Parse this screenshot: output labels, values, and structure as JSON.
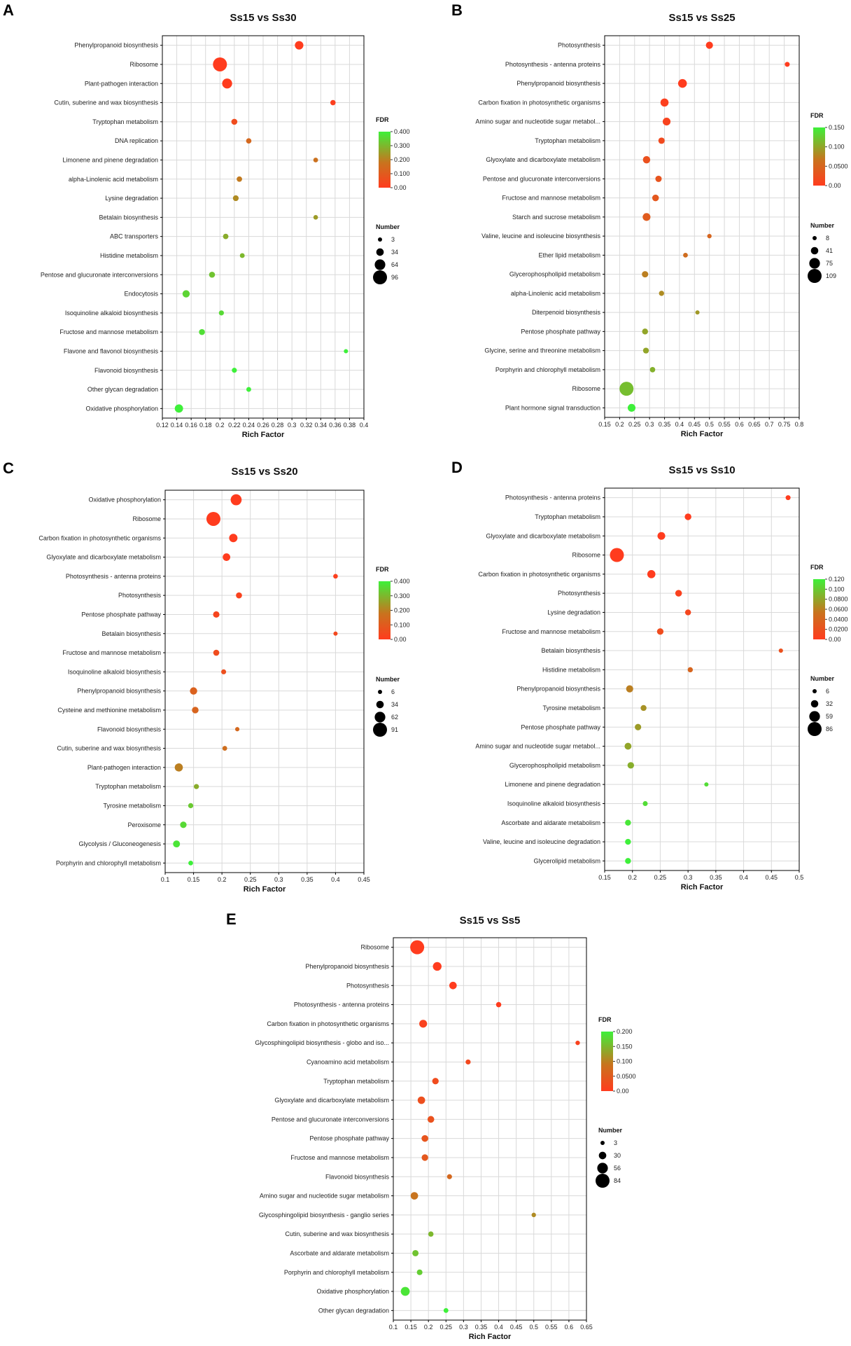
{
  "chart_data": [
    {
      "type": "scatter",
      "panel": "A",
      "title": "Ss15 vs Ss30",
      "xlabel": "Rich Factor",
      "xlim": [
        0.12,
        0.4
      ],
      "xticks": [
        0.12,
        0.14,
        0.16,
        0.18,
        0.2,
        0.22,
        0.24,
        0.26,
        0.28,
        0.3,
        0.32,
        0.34,
        0.36,
        0.38,
        0.4
      ],
      "xtick_labels": [
        "0.12",
        "0.14",
        "0.16",
        "0.18",
        "0.2",
        "0.22",
        "0.24",
        "0.26",
        "0.28",
        "0.3",
        "0.32",
        "0.34",
        "0.36",
        "0.38",
        "0.4"
      ],
      "fdr_legend": {
        "title": "FDR",
        "labels": [
          "0.400",
          "0.300",
          "0.200",
          "0.100",
          "0.00"
        ],
        "max": 0.4
      },
      "number_legend": {
        "title": "Number",
        "values": [
          3,
          34,
          64,
          96
        ]
      },
      "points": [
        {
          "label": "Phenylpropanoid biosynthesis",
          "rich_factor": 0.31,
          "number": 44,
          "fdr": 0.0
        },
        {
          "label": "Ribosome",
          "rich_factor": 0.2,
          "number": 96,
          "fdr": 0.0
        },
        {
          "label": "Plant-pathogen interaction",
          "rich_factor": 0.21,
          "number": 58,
          "fdr": 0.0
        },
        {
          "label": "Cutin, suberine and wax biosynthesis",
          "rich_factor": 0.357,
          "number": 14,
          "fdr": 0.01
        },
        {
          "label": "Tryptophan metabolism",
          "rich_factor": 0.22,
          "number": 20,
          "fdr": 0.05
        },
        {
          "label": "DNA replication",
          "rich_factor": 0.24,
          "number": 14,
          "fdr": 0.14
        },
        {
          "label": "Limonene and pinene degradation",
          "rich_factor": 0.333,
          "number": 8,
          "fdr": 0.17
        },
        {
          "label": "alpha-Linolenic acid metabolism",
          "rich_factor": 0.227,
          "number": 15,
          "fdr": 0.19
        },
        {
          "label": "Lysine degradation",
          "rich_factor": 0.222,
          "number": 18,
          "fdr": 0.22
        },
        {
          "label": "Betalain biosynthesis",
          "rich_factor": 0.333,
          "number": 7,
          "fdr": 0.25
        },
        {
          "label": "ABC transporters",
          "rich_factor": 0.208,
          "number": 15,
          "fdr": 0.28
        },
        {
          "label": "Histidine metabolism",
          "rich_factor": 0.231,
          "number": 9,
          "fdr": 0.3
        },
        {
          "label": "Pentose and glucuronate interconversions",
          "rich_factor": 0.189,
          "number": 20,
          "fdr": 0.32
        },
        {
          "label": "Endocytosis",
          "rich_factor": 0.153,
          "number": 32,
          "fdr": 0.35
        },
        {
          "label": "Isoquinoline alkaloid biosynthesis",
          "rich_factor": 0.202,
          "number": 11,
          "fdr": 0.36
        },
        {
          "label": "Fructose and mannose metabolism",
          "rich_factor": 0.175,
          "number": 20,
          "fdr": 0.37
        },
        {
          "label": "Flavone and flavonol biosynthesis",
          "rich_factor": 0.375,
          "number": 3,
          "fdr": 0.4
        },
        {
          "label": "Flavonoid biosynthesis",
          "rich_factor": 0.22,
          "number": 11,
          "fdr": 0.4
        },
        {
          "label": "Other glycan degradation",
          "rich_factor": 0.24,
          "number": 9,
          "fdr": 0.4
        },
        {
          "label": "Oxidative phosphorylation",
          "rich_factor": 0.143,
          "number": 42,
          "fdr": 0.4
        }
      ]
    },
    {
      "type": "scatter",
      "panel": "B",
      "title": "Ss15 vs Ss25",
      "xlabel": "Rich Factor",
      "xlim": [
        0.15,
        0.8
      ],
      "xticks": [
        0.15,
        0.2,
        0.25,
        0.3,
        0.35,
        0.4,
        0.45,
        0.5,
        0.55,
        0.6,
        0.65,
        0.7,
        0.75,
        0.8
      ],
      "xtick_labels": [
        "0.15",
        "0.2",
        "0.25",
        "0.3",
        "0.35",
        "0.4",
        "0.45",
        "0.5",
        "0.55",
        "0.6",
        "0.65",
        "0.7",
        "0.75",
        "0.8"
      ],
      "fdr_legend": {
        "title": "FDR",
        "labels": [
          "0.150",
          "0.100",
          "0.0500",
          "0.00"
        ],
        "max": 0.18
      },
      "number_legend": {
        "title": "Number",
        "values": [
          8,
          41,
          75,
          109
        ]
      },
      "points": [
        {
          "label": "Photosynthesis",
          "rich_factor": 0.5,
          "number": 38,
          "fdr": 0.0
        },
        {
          "label": "Photosynthesis - antenna proteins",
          "rich_factor": 0.76,
          "number": 16,
          "fdr": 0.0
        },
        {
          "label": "Phenylpropanoid biosynthesis",
          "rich_factor": 0.41,
          "number": 55,
          "fdr": 0.0
        },
        {
          "label": "Carbon fixation in photosynthetic organisms",
          "rich_factor": 0.35,
          "number": 48,
          "fdr": 0.005
        },
        {
          "label": "Amino sugar and nucleotide sugar metabol...",
          "rich_factor": 0.357,
          "number": 45,
          "fdr": 0.01
        },
        {
          "label": "Tryptophan metabolism",
          "rich_factor": 0.34,
          "number": 30,
          "fdr": 0.02
        },
        {
          "label": "Glyoxylate and dicarboxylate metabolism",
          "rich_factor": 0.29,
          "number": 40,
          "fdr": 0.03
        },
        {
          "label": "Pentose and glucuronate interconversions",
          "rich_factor": 0.33,
          "number": 30,
          "fdr": 0.035
        },
        {
          "label": "Fructose and mannose metabolism",
          "rich_factor": 0.32,
          "number": 33,
          "fdr": 0.04
        },
        {
          "label": "Starch and sucrose metabolism",
          "rich_factor": 0.29,
          "number": 45,
          "fdr": 0.045
        },
        {
          "label": "Valine, leucine and isoleucine biosynthesis",
          "rich_factor": 0.5,
          "number": 10,
          "fdr": 0.06
        },
        {
          "label": "Ether lipid metabolism",
          "rich_factor": 0.42,
          "number": 14,
          "fdr": 0.07
        },
        {
          "label": "Glycerophospholipid metabolism",
          "rich_factor": 0.285,
          "number": 30,
          "fdr": 0.09
        },
        {
          "label": "alpha-Linolenic acid metabolism",
          "rich_factor": 0.34,
          "number": 18,
          "fdr": 0.1
        },
        {
          "label": "Diterpenoid biosynthesis",
          "rich_factor": 0.46,
          "number": 8,
          "fdr": 0.11
        },
        {
          "label": "Pentose phosphate pathway",
          "rich_factor": 0.285,
          "number": 26,
          "fdr": 0.12
        },
        {
          "label": "Glycine, serine and threonine metabolism",
          "rich_factor": 0.288,
          "number": 25,
          "fdr": 0.12
        },
        {
          "label": "Porphyrin and chlorophyll metabolism",
          "rich_factor": 0.31,
          "number": 20,
          "fdr": 0.13
        },
        {
          "label": "Ribosome",
          "rich_factor": 0.223,
          "number": 109,
          "fdr": 0.14
        },
        {
          "label": "Plant hormone signal transduction",
          "rich_factor": 0.24,
          "number": 45,
          "fdr": 0.18
        }
      ]
    },
    {
      "type": "scatter",
      "panel": "C",
      "title": "Ss15 vs Ss20",
      "xlabel": "Rich Factor",
      "xlim": [
        0.1,
        0.45
      ],
      "xticks": [
        0.1,
        0.15,
        0.2,
        0.25,
        0.3,
        0.35,
        0.4,
        0.45
      ],
      "xtick_labels": [
        "0.1",
        "0.15",
        "0.2",
        "0.25",
        "0.3",
        "0.35",
        "0.4",
        "0.45"
      ],
      "fdr_legend": {
        "title": "FDR",
        "labels": [
          "0.400",
          "0.300",
          "0.200",
          "0.100",
          "0.00"
        ],
        "max": 0.4
      },
      "number_legend": {
        "title": "Number",
        "values": [
          6,
          34,
          62,
          91
        ]
      },
      "points": [
        {
          "label": "Oxidative phosphorylation",
          "rich_factor": 0.225,
          "number": 65,
          "fdr": 0.0
        },
        {
          "label": "Ribosome",
          "rich_factor": 0.185,
          "number": 91,
          "fdr": 0.0
        },
        {
          "label": "Carbon fixation in photosynthetic organisms",
          "rich_factor": 0.22,
          "number": 42,
          "fdr": 0.0
        },
        {
          "label": "Glyoxylate and dicarboxylate metabolism",
          "rich_factor": 0.208,
          "number": 35,
          "fdr": 0.0
        },
        {
          "label": "Photosynthesis - antenna proteins",
          "rich_factor": 0.4,
          "number": 10,
          "fdr": 0.01
        },
        {
          "label": "Photosynthesis",
          "rich_factor": 0.23,
          "number": 22,
          "fdr": 0.02
        },
        {
          "label": "Pentose phosphate pathway",
          "rich_factor": 0.19,
          "number": 25,
          "fdr": 0.03
        },
        {
          "label": "Betalain biosynthesis",
          "rich_factor": 0.4,
          "number": 6,
          "fdr": 0.04
        },
        {
          "label": "Fructose and mannose metabolism",
          "rich_factor": 0.19,
          "number": 22,
          "fdr": 0.05
        },
        {
          "label": "Isoquinoline alkaloid biosynthesis",
          "rich_factor": 0.203,
          "number": 13,
          "fdr": 0.06
        },
        {
          "label": "Phenylpropanoid biosynthesis",
          "rich_factor": 0.15,
          "number": 33,
          "fdr": 0.12
        },
        {
          "label": "Cysteine and methionine metabolism",
          "rich_factor": 0.153,
          "number": 27,
          "fdr": 0.13
        },
        {
          "label": "Flavonoid biosynthesis",
          "rich_factor": 0.227,
          "number": 7,
          "fdr": 0.14
        },
        {
          "label": "Cutin, suberine and wax biosynthesis",
          "rich_factor": 0.205,
          "number": 11,
          "fdr": 0.16
        },
        {
          "label": "Plant-pathogen interaction",
          "rich_factor": 0.124,
          "number": 40,
          "fdr": 0.2
        },
        {
          "label": "Tryptophan metabolism",
          "rich_factor": 0.155,
          "number": 14,
          "fdr": 0.28
        },
        {
          "label": "Tyrosine metabolism",
          "rich_factor": 0.145,
          "number": 14,
          "fdr": 0.33
        },
        {
          "label": "Peroxisome",
          "rich_factor": 0.132,
          "number": 26,
          "fdr": 0.36
        },
        {
          "label": "Glycolysis / Gluconeogenesis",
          "rich_factor": 0.12,
          "number": 30,
          "fdr": 0.38
        },
        {
          "label": "Porphyrin and chlorophyll metabolism",
          "rich_factor": 0.145,
          "number": 11,
          "fdr": 0.4
        }
      ]
    },
    {
      "type": "scatter",
      "panel": "D",
      "title": "Ss15 vs Ss10",
      "xlabel": "Rich Factor",
      "xlim": [
        0.15,
        0.5
      ],
      "xticks": [
        0.15,
        0.2,
        0.25,
        0.3,
        0.35,
        0.4,
        0.45,
        0.5
      ],
      "xtick_labels": [
        "0.15",
        "0.2",
        "0.25",
        "0.3",
        "0.35",
        "0.4",
        "0.45",
        "0.5"
      ],
      "fdr_legend": {
        "title": "FDR",
        "labels": [
          "0.120",
          "0.100",
          "0.0800",
          "0.0600",
          "0.0400",
          "0.0200",
          "0.00"
        ],
        "max": 0.12
      },
      "number_legend": {
        "title": "Number",
        "values": [
          6,
          32,
          59,
          86
        ]
      },
      "points": [
        {
          "label": "Photosynthesis - antenna proteins",
          "rich_factor": 0.48,
          "number": 12,
          "fdr": 0.0
        },
        {
          "label": "Tryptophan metabolism",
          "rich_factor": 0.3,
          "number": 26,
          "fdr": 0.0
        },
        {
          "label": "Glyoxylate and dicarboxylate metabolism",
          "rich_factor": 0.252,
          "number": 35,
          "fdr": 0.0
        },
        {
          "label": "Ribosome",
          "rich_factor": 0.172,
          "number": 86,
          "fdr": 0.0
        },
        {
          "label": "Carbon fixation in photosynthetic organisms",
          "rich_factor": 0.234,
          "number": 38,
          "fdr": 0.0
        },
        {
          "label": "Photosynthesis",
          "rich_factor": 0.283,
          "number": 26,
          "fdr": 0.005
        },
        {
          "label": "Lysine degradation",
          "rich_factor": 0.3,
          "number": 20,
          "fdr": 0.01
        },
        {
          "label": "Fructose and mannose metabolism",
          "rich_factor": 0.25,
          "number": 25,
          "fdr": 0.015
        },
        {
          "label": "Betalain biosynthesis",
          "rich_factor": 0.467,
          "number": 7,
          "fdr": 0.02
        },
        {
          "label": "Histidine metabolism",
          "rich_factor": 0.304,
          "number": 14,
          "fdr": 0.04
        },
        {
          "label": "Phenylpropanoid biosynthesis",
          "rich_factor": 0.195,
          "number": 30,
          "fdr": 0.06
        },
        {
          "label": "Tyrosine metabolism",
          "rich_factor": 0.22,
          "number": 20,
          "fdr": 0.07
        },
        {
          "label": "Pentose phosphate pathway",
          "rich_factor": 0.21,
          "number": 24,
          "fdr": 0.075
        },
        {
          "label": "Amino sugar and nucleotide sugar metabol...",
          "rich_factor": 0.192,
          "number": 28,
          "fdr": 0.08
        },
        {
          "label": "Glycerophospholipid metabolism",
          "rich_factor": 0.197,
          "number": 25,
          "fdr": 0.085
        },
        {
          "label": "Limonene and pinene degradation",
          "rich_factor": 0.333,
          "number": 6,
          "fdr": 0.11
        },
        {
          "label": "Isoquinoline alkaloid biosynthesis",
          "rich_factor": 0.223,
          "number": 12,
          "fdr": 0.11
        },
        {
          "label": "Ascorbate and aldarate metabolism",
          "rich_factor": 0.192,
          "number": 20,
          "fdr": 0.115
        },
        {
          "label": "Valine, leucine and isoleucine degradation",
          "rich_factor": 0.192,
          "number": 20,
          "fdr": 0.12
        },
        {
          "label": "Glycerolipid metabolism",
          "rich_factor": 0.192,
          "number": 20,
          "fdr": 0.12
        }
      ]
    },
    {
      "type": "scatter",
      "panel": "E",
      "title": "Ss15 vs Ss5",
      "xlabel": "Rich Factor",
      "xlim": [
        0.1,
        0.65
      ],
      "xticks": [
        0.1,
        0.15,
        0.2,
        0.25,
        0.3,
        0.35,
        0.4,
        0.45,
        0.5,
        0.55,
        0.6,
        0.65
      ],
      "xtick_labels": [
        "0.1",
        "0.15",
        "0.2",
        "0.25",
        "0.3",
        "0.35",
        "0.4",
        "0.45",
        "0.5",
        "0.55",
        "0.6",
        "0.65"
      ],
      "fdr_legend": {
        "title": "FDR",
        "labels": [
          "0.200",
          "0.150",
          "0.100",
          "0.0500",
          "0.00"
        ],
        "max": 0.2
      },
      "number_legend": {
        "title": "Number",
        "values": [
          3,
          30,
          56,
          84
        ]
      },
      "points": [
        {
          "label": "Ribosome",
          "rich_factor": 0.168,
          "number": 84,
          "fdr": 0.0
        },
        {
          "label": "Phenylpropanoid biosynthesis",
          "rich_factor": 0.225,
          "number": 40,
          "fdr": 0.0
        },
        {
          "label": "Photosynthesis",
          "rich_factor": 0.27,
          "number": 30,
          "fdr": 0.0
        },
        {
          "label": "Photosynthesis - antenna proteins",
          "rich_factor": 0.4,
          "number": 12,
          "fdr": 0.0
        },
        {
          "label": "Carbon fixation in photosynthetic organisms",
          "rich_factor": 0.185,
          "number": 33,
          "fdr": 0.01
        },
        {
          "label": "Glycosphingolipid biosynthesis - globo and iso...",
          "rich_factor": 0.625,
          "number": 5,
          "fdr": 0.01
        },
        {
          "label": "Cyanoamino acid metabolism",
          "rich_factor": 0.313,
          "number": 10,
          "fdr": 0.02
        },
        {
          "label": "Tryptophan metabolism",
          "rich_factor": 0.22,
          "number": 22,
          "fdr": 0.025
        },
        {
          "label": "Glyoxylate and dicarboxylate metabolism",
          "rich_factor": 0.18,
          "number": 30,
          "fdr": 0.03
        },
        {
          "label": "Pentose and glucuronate interconversions",
          "rich_factor": 0.207,
          "number": 24,
          "fdr": 0.035
        },
        {
          "label": "Pentose phosphate pathway",
          "rich_factor": 0.19,
          "number": 24,
          "fdr": 0.04
        },
        {
          "label": "Fructose and mannose metabolism",
          "rich_factor": 0.19,
          "number": 22,
          "fdr": 0.045
        },
        {
          "label": "Flavonoid biosynthesis",
          "rich_factor": 0.26,
          "number": 10,
          "fdr": 0.07
        },
        {
          "label": "Amino sugar and nucleotide sugar metabolism",
          "rich_factor": 0.16,
          "number": 30,
          "fdr": 0.09
        },
        {
          "label": "Glycosphingolipid biosynthesis - ganglio series",
          "rich_factor": 0.5,
          "number": 5,
          "fdr": 0.11
        },
        {
          "label": "Cutin, suberine and wax biosynthesis",
          "rich_factor": 0.207,
          "number": 12,
          "fdr": 0.15
        },
        {
          "label": "Ascorbate and aldarate metabolism",
          "rich_factor": 0.163,
          "number": 20,
          "fdr": 0.16
        },
        {
          "label": "Porphyrin and chlorophyll metabolism",
          "rich_factor": 0.175,
          "number": 15,
          "fdr": 0.17
        },
        {
          "label": "Oxidative phosphorylation",
          "rich_factor": 0.134,
          "number": 42,
          "fdr": 0.19
        },
        {
          "label": "Other glycan degradation",
          "rich_factor": 0.25,
          "number": 8,
          "fdr": 0.2
        }
      ]
    }
  ]
}
